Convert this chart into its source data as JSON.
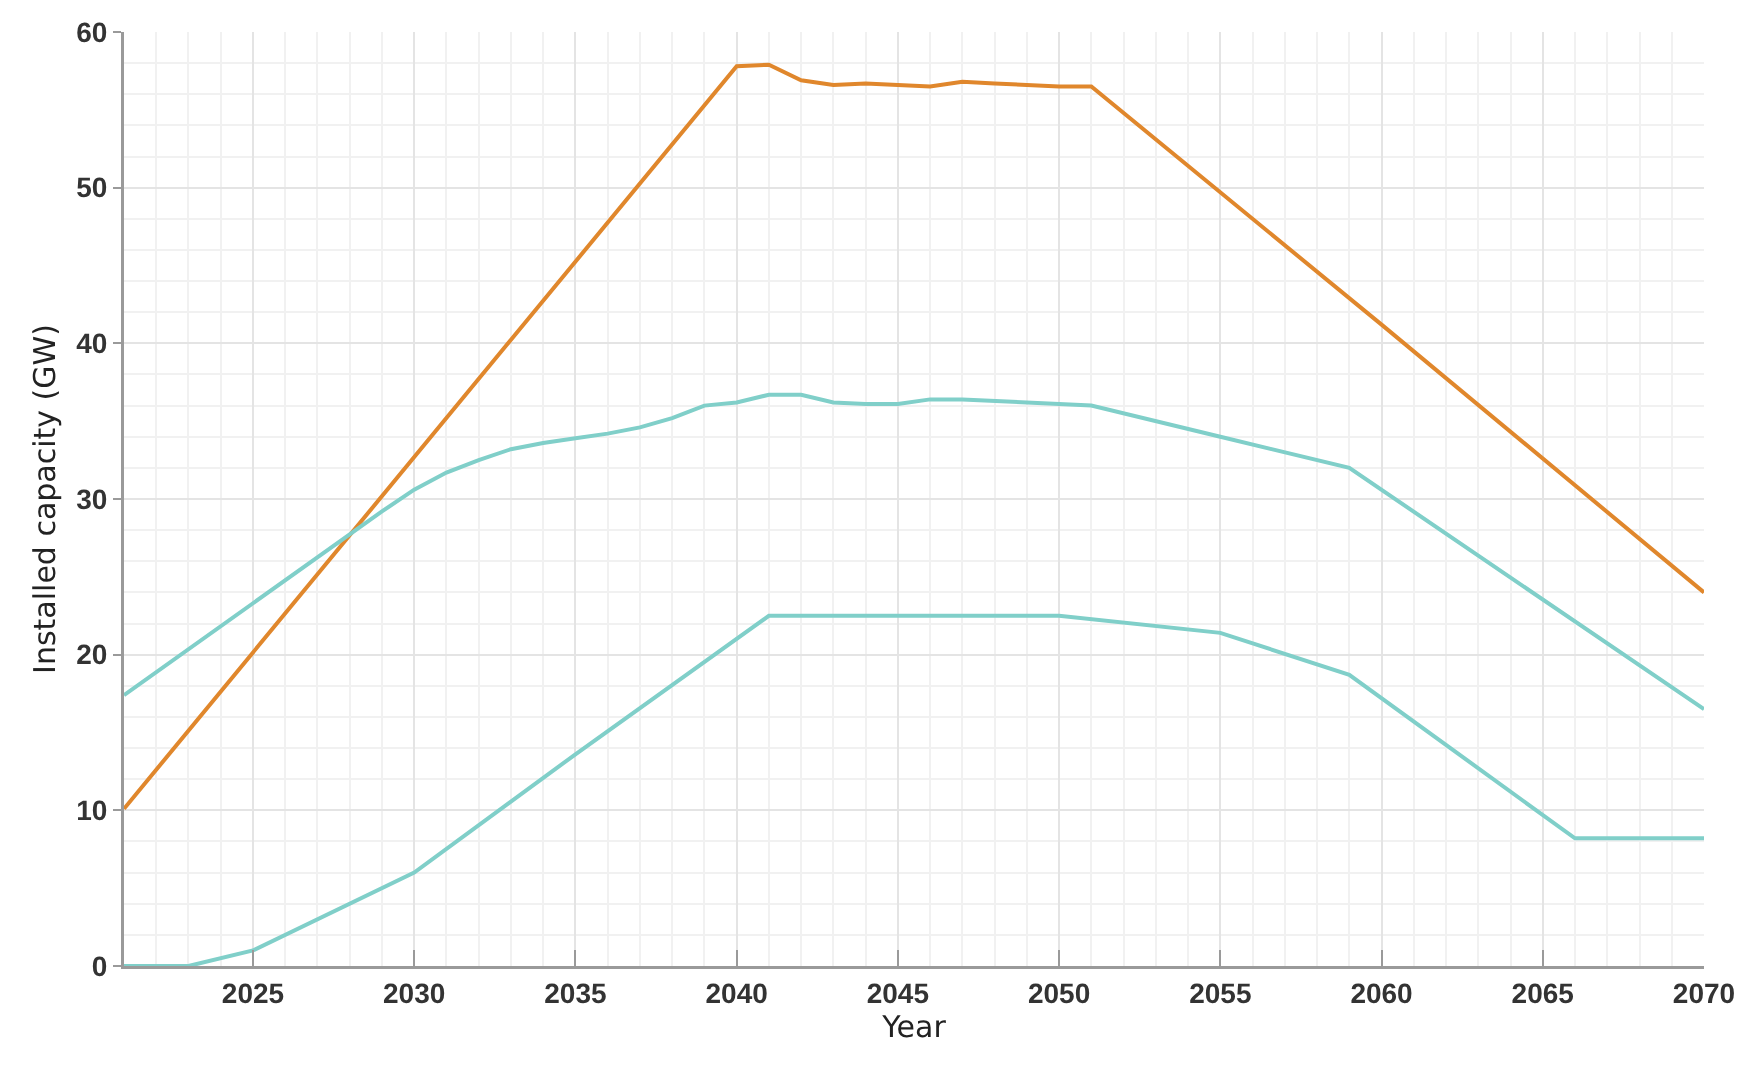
{
  "chart_data": {
    "type": "line",
    "xlabel": "Year",
    "ylabel": "Installed capacity (GW)",
    "xlim": [
      2021,
      2070
    ],
    "xticks": [
      2025,
      2030,
      2035,
      2040,
      2045,
      2050,
      2055,
      2060,
      2065,
      2070
    ],
    "ylim": [
      0,
      60
    ],
    "yticks": [
      0,
      10,
      20,
      30,
      40,
      50,
      60
    ],
    "grid": true,
    "line_style": "solid",
    "series": [
      {
        "color": "#e0872c",
        "x": [
          2021,
          2040,
          2041,
          2042,
          2043,
          2044,
          2045,
          2046,
          2047,
          2048,
          2049,
          2050,
          2051,
          2060,
          2070
        ],
        "values": [
          10.1,
          57.8,
          57.9,
          56.9,
          56.6,
          56.7,
          56.6,
          56.5,
          56.8,
          56.7,
          56.6,
          56.5,
          56.5,
          41.2,
          24.0
        ]
      },
      {
        "color": "#80cfc9",
        "x": [
          2021,
          2029,
          2030,
          2031,
          2032,
          2033,
          2034,
          2035,
          2036,
          2037,
          2038,
          2039,
          2040,
          2041,
          2042,
          2043,
          2044,
          2045,
          2046,
          2047,
          2051,
          2055,
          2059,
          2070
        ],
        "values": [
          17.4,
          29.2,
          30.6,
          31.7,
          32.5,
          33.2,
          33.6,
          33.9,
          34.2,
          34.6,
          35.2,
          36.0,
          36.2,
          36.7,
          36.7,
          36.2,
          36.1,
          36.1,
          36.4,
          36.4,
          36.0,
          34.0,
          32.0,
          16.5
        ]
      },
      {
        "color": "#80cfc9",
        "x": [
          2021,
          2023,
          2025,
          2030,
          2035,
          2041,
          2050,
          2055,
          2059,
          2066,
          2070
        ],
        "values": [
          0,
          0,
          1.0,
          6.0,
          13.6,
          22.5,
          22.5,
          21.4,
          18.7,
          8.2,
          8.2
        ]
      }
    ]
  }
}
